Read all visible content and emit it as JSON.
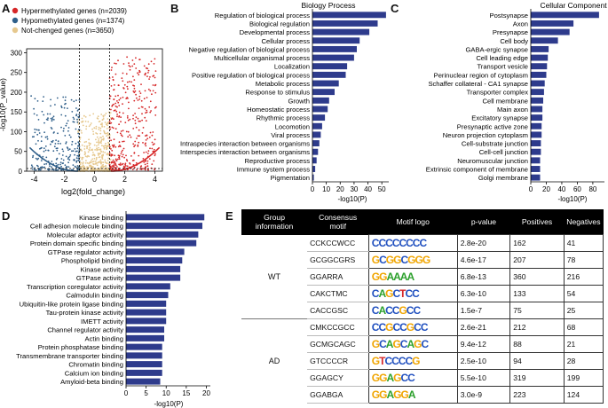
{
  "panel_labels": [
    "A",
    "B",
    "C",
    "D",
    "E"
  ],
  "panelA": {
    "legend": [
      "Hypermethylated genes (n=2039)",
      "Hypomethylated genes (n=1374)",
      "Not-chenged genes (n=3650)"
    ],
    "colors": {
      "hyper": "#d62728",
      "hypo": "#2f5f8a",
      "not": "#e6c88e"
    },
    "chart_data": {
      "type": "scatter",
      "title": "",
      "xlabel": "log2(fold_change)",
      "ylabel": "-log10(P_value)",
      "xlim": [
        -4.5,
        4.5
      ],
      "ylim": [
        0,
        310
      ],
      "x_ticks": [
        "-4",
        "-2",
        "0",
        "2",
        "4"
      ],
      "y_ticks": [
        "0",
        "50",
        "100",
        "150",
        "200",
        "250",
        "300"
      ],
      "series": [
        {
          "name": "Hypermethylated genes",
          "count": 2039
        },
        {
          "name": "Hypomethylated genes",
          "count": 1374
        },
        {
          "name": "Not-chenged genes",
          "count": 3650
        }
      ],
      "thresholds": {
        "fold_change": [
          -1,
          1
        ],
        "p_line": 0
      }
    }
  },
  "panelB": {
    "chart_data": {
      "type": "bar",
      "title": "Biology Process",
      "xlabel": "-log10(P)",
      "xlim": [
        0,
        55
      ],
      "x_ticks": [
        "0",
        "10",
        "20",
        "30",
        "40",
        "50"
      ],
      "categories": [
        "Regulation of biological process",
        "Biological regulation",
        "Developmental process",
        "Cellular process",
        "Negative regulation of biological process",
        "Multicellular organismal process",
        "Localization",
        "Positive regulation of biological process",
        "Metabolic process",
        "Response to stimulus",
        "Growth",
        "Homeostatic process",
        "Rhythmic process",
        "Locomotion",
        "Viral process",
        "Intraspecies interaction between organisms",
        "Interspecies interaction between organisms",
        "Reproductive process",
        "Immune system process",
        "Pigmentation"
      ],
      "values": [
        53,
        47,
        41,
        34,
        32,
        30,
        25,
        24,
        19,
        16,
        12,
        11,
        9,
        7,
        6,
        5,
        4,
        3,
        2,
        1
      ]
    }
  },
  "panelC": {
    "chart_data": {
      "type": "bar",
      "title": "Cellular Component",
      "xlabel": "-log10(P)",
      "xlim": [
        0,
        95
      ],
      "x_ticks": [
        "0",
        "20",
        "40",
        "60",
        "80"
      ],
      "categories": [
        "Postsynapse",
        "Axon",
        "Presynapse",
        "Cell body",
        "GABA-ergic synapse",
        "Cell leading edge",
        "Transport vesicle",
        "Perinuclear region of cytoplasm",
        "Schaffer collateral - CA1 synapse",
        "Transporter complex",
        "Cell membrane",
        "Main axon",
        "Excitatory synapse",
        "Presynaptic active zone",
        "Neuron projection cytoplasm",
        "Cell-substrate junction",
        "Cell-cell junction",
        "Neuromuscular junction",
        "Extrinsic component of membrane",
        "Golgi membrane"
      ],
      "values": [
        88,
        55,
        50,
        35,
        23,
        22,
        21,
        20,
        18,
        17,
        16,
        15,
        15,
        14,
        14,
        13,
        13,
        12,
        12,
        12
      ]
    }
  },
  "panelD": {
    "chart_data": {
      "type": "bar",
      "title": "",
      "xlabel": "-log10(P)",
      "xlim": [
        0,
        21
      ],
      "x_ticks": [
        "0",
        "5",
        "10",
        "15",
        "20"
      ],
      "categories": [
        "Kinase binding",
        "Cell adhesion molecule binding",
        "Molecular adaptor activity",
        "Protein domain specific binding",
        "GTPase regulator activity",
        "Phospholipid binding",
        "Kinase activity",
        "GTPase activity",
        "Transcription coregulator activity",
        "Calmodulin binding",
        "Ubiquitin-like protein ligase binding",
        "Tau-protein kinase activity",
        "IMETT activity",
        "Channel regulator activity",
        "Actin binding",
        "Protein phosphatase binding",
        "Transmembrane transporter binding",
        "Chromatin binding",
        "Calcium ion binding",
        "Amyloid-beta binding"
      ],
      "values": [
        19.5,
        19,
        18,
        17.5,
        14.5,
        14,
        13.5,
        13.5,
        11,
        10.5,
        10,
        10,
        10,
        9.5,
        9.5,
        9,
        9,
        9,
        9,
        8.5
      ]
    }
  },
  "panelE": {
    "headers": [
      "Group information",
      "Consensus motif",
      "Motif logo",
      "p-value",
      "Positives",
      "Negatives"
    ],
    "groups": [
      {
        "name": "WT",
        "rows": [
          {
            "motif": "CCKCCWCC",
            "logo": "CCCCCCCC",
            "p": "2.8e-20",
            "pos": "162",
            "neg": "41"
          },
          {
            "motif": "GCGGCGRS",
            "logo": "GCGGCGGG",
            "p": "4.6e-17",
            "pos": "207",
            "neg": "78"
          },
          {
            "motif": "GGARRA",
            "logo": "GGAAAA",
            "p": "6.8e-13",
            "pos": "360",
            "neg": "216"
          },
          {
            "motif": "CAKCTMC",
            "logo": "CAGCTCC",
            "p": "6.3e-10",
            "pos": "133",
            "neg": "54"
          },
          {
            "motif": "CACCGSC",
            "logo": "CACCGCC",
            "p": "1.5e-7",
            "pos": "75",
            "neg": "25"
          }
        ]
      },
      {
        "name": "AD",
        "rows": [
          {
            "motif": "CMKCCGCC",
            "logo": "CCGCCGCC",
            "p": "2.6e-21",
            "pos": "212",
            "neg": "68"
          },
          {
            "motif": "GCMGCAGC",
            "logo": "GCAGCAGC",
            "p": "9.4e-12",
            "pos": "88",
            "neg": "21"
          },
          {
            "motif": "GTCCCCR",
            "logo": "GTCCCCG",
            "p": "2.5e-10",
            "pos": "94",
            "neg": "28"
          },
          {
            "motif": "GGAGCY",
            "logo": "GGAGCC",
            "p": "5.5e-10",
            "pos": "319",
            "neg": "199"
          },
          {
            "motif": "GGABGA",
            "logo": "GGAGGA",
            "p": "3.0e-9",
            "pos": "223",
            "neg": "124"
          }
        ]
      }
    ],
    "base_colors": {
      "A": "#2ca02c",
      "C": "#1f4fbf",
      "G": "#f0a500",
      "T": "#d62728"
    }
  }
}
